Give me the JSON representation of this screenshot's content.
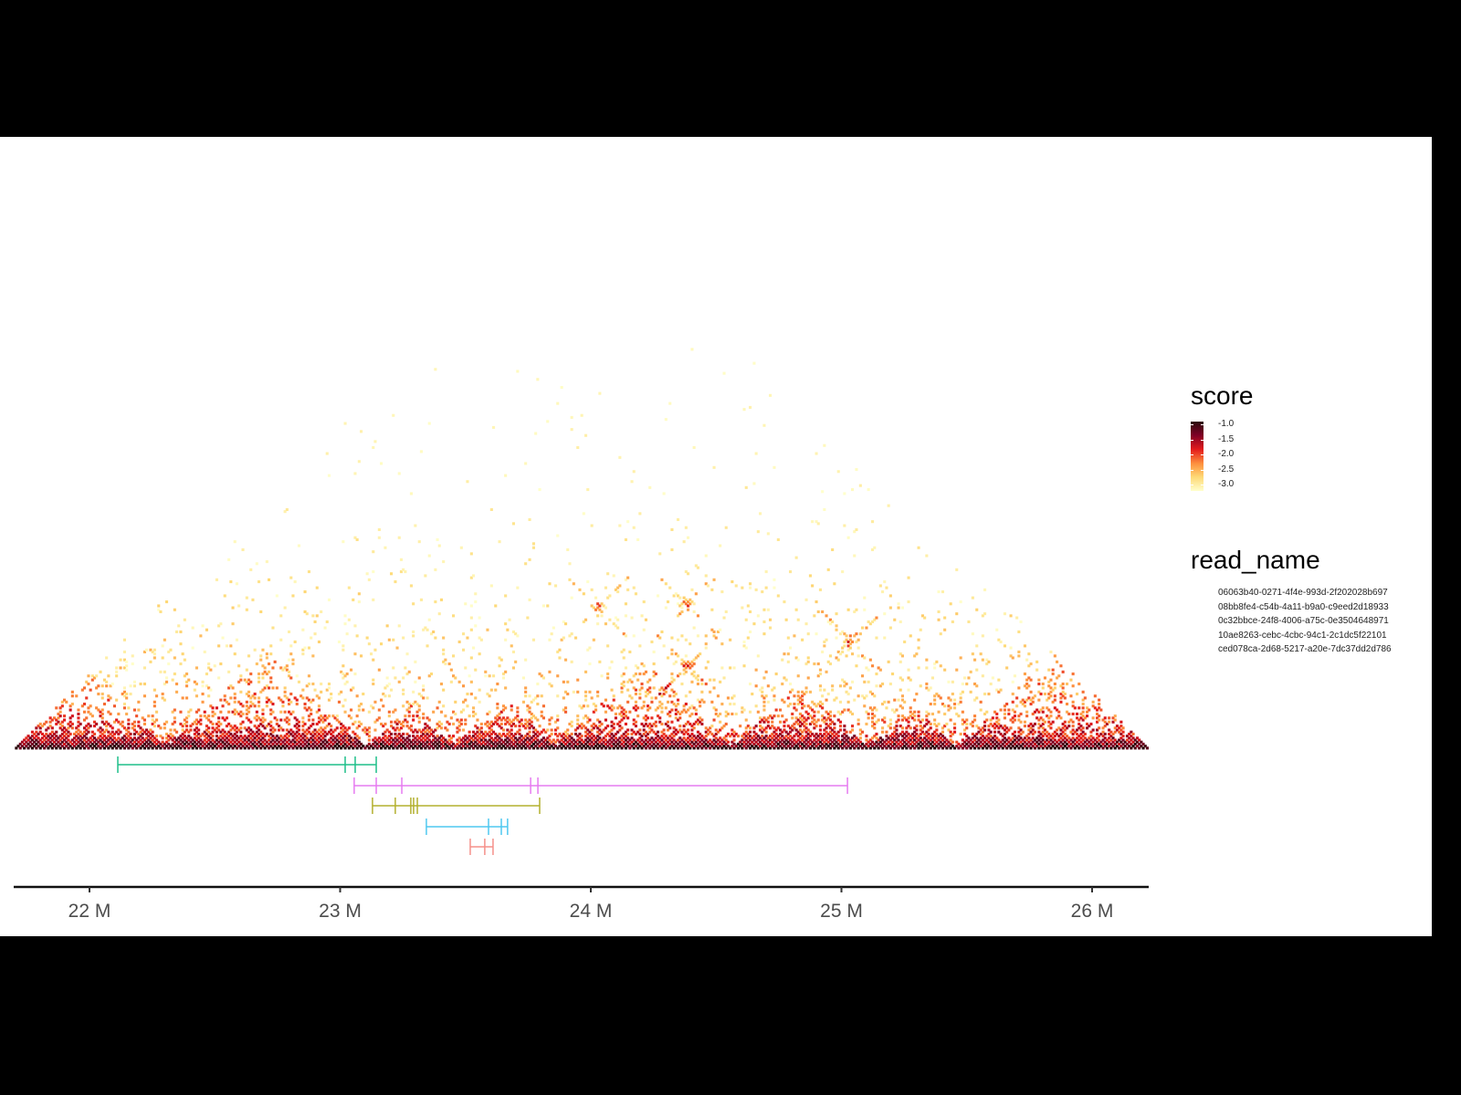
{
  "chart_data": {
    "type": "heatmap",
    "subtype": "triangular Hi-C contact map with read-segment tracks",
    "title": "",
    "xlabel": "",
    "ylabel": "",
    "x_axis": {
      "range_mb": [
        21.7,
        26.23
      ],
      "ticks": [
        {
          "value": 22,
          "label": "22 M"
        },
        {
          "value": 23,
          "label": "23 M"
        },
        {
          "value": 24,
          "label": "24 M"
        },
        {
          "value": 25,
          "label": "25 M"
        },
        {
          "value": 26,
          "label": "26 M"
        }
      ]
    },
    "heatmap": {
      "shape": "upper triangle rotated 45°",
      "fill_legend": {
        "title": "score",
        "range": [
          -3.2,
          -0.9
        ],
        "ticks": [
          -1.0,
          -1.5,
          -2.0,
          -2.5,
          -3.0
        ],
        "tick_labels": [
          "-1.0",
          "-1.5",
          "-2.0",
          "-2.5",
          "-3.0"
        ],
        "colors_low_to_high": [
          "#ffffcc",
          "#fed976",
          "#fd8d3c",
          "#e31a1c",
          "#800026",
          "#2b0a0d"
        ]
      },
      "visible_features": {
        "tads_along_diagonal_mb": [
          [
            21.7,
            22.3
          ],
          [
            22.3,
            23.1
          ],
          [
            23.1,
            23.45
          ],
          [
            23.45,
            23.85
          ],
          [
            23.85,
            24.55
          ],
          [
            24.55,
            25.1
          ],
          [
            25.1,
            25.45
          ],
          [
            25.45,
            26.23
          ]
        ],
        "focal_loops_mb": [
          [
            23.46,
            24.58
          ],
          [
            23.8,
            24.95
          ],
          [
            24.05,
            24.7
          ],
          [
            24.6,
            25.45
          ]
        ]
      }
    },
    "legend_read_name": {
      "title": "read_name",
      "entries": [
        "06063b40-0271-4f4e-993d-2f202028b697",
        "08bb8fe4-c54b-4a11-b9a0-c9eed2d18933",
        "0c32bbce-24f8-4006-a75c-0e3504648971",
        "10ae8263-cebc-4cbc-94c1-2c1dc5f22101",
        "ced078ca-2d68-5217-a20e-7dc37dd2d786"
      ]
    },
    "series": [
      {
        "name": "green read",
        "color": "#1fbf8a",
        "start_mb": 22.113,
        "end_mb": 23.144,
        "fragment_ticks_mb": [
          22.113,
          23.02,
          23.06,
          23.144
        ]
      },
      {
        "name": "magenta read",
        "color": "#e67bf0",
        "start_mb": 23.056,
        "end_mb": 25.024,
        "fragment_ticks_mb": [
          23.056,
          23.144,
          23.246,
          23.76,
          23.789,
          25.024
        ]
      },
      {
        "name": "olive read",
        "color": "#b3b02e",
        "start_mb": 23.129,
        "end_mb": 23.796,
        "fragment_ticks_mb": [
          23.129,
          23.22,
          23.282,
          23.293,
          23.308,
          23.796
        ]
      },
      {
        "name": "blue read",
        "color": "#4fc8f0",
        "start_mb": 23.344,
        "end_mb": 23.668,
        "fragment_ticks_mb": [
          23.344,
          23.592,
          23.643,
          23.668
        ]
      },
      {
        "name": "red read",
        "color": "#f5908a",
        "start_mb": 23.519,
        "end_mb": 23.61,
        "fragment_ticks_mb": [
          23.519,
          23.577,
          23.61
        ]
      }
    ]
  }
}
